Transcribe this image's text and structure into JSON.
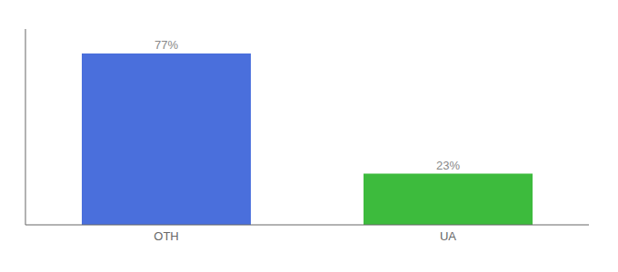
{
  "chart_data": {
    "type": "bar",
    "categories": [
      "OTH",
      "UA"
    ],
    "values": [
      77,
      23
    ],
    "value_labels": [
      "77%",
      "23%"
    ],
    "data_labels": true,
    "colors": [
      "#4a6fdc",
      "#3dbb3d"
    ],
    "ylim": [
      0,
      88
    ],
    "tick_labels": "x",
    "grid": false
  }
}
